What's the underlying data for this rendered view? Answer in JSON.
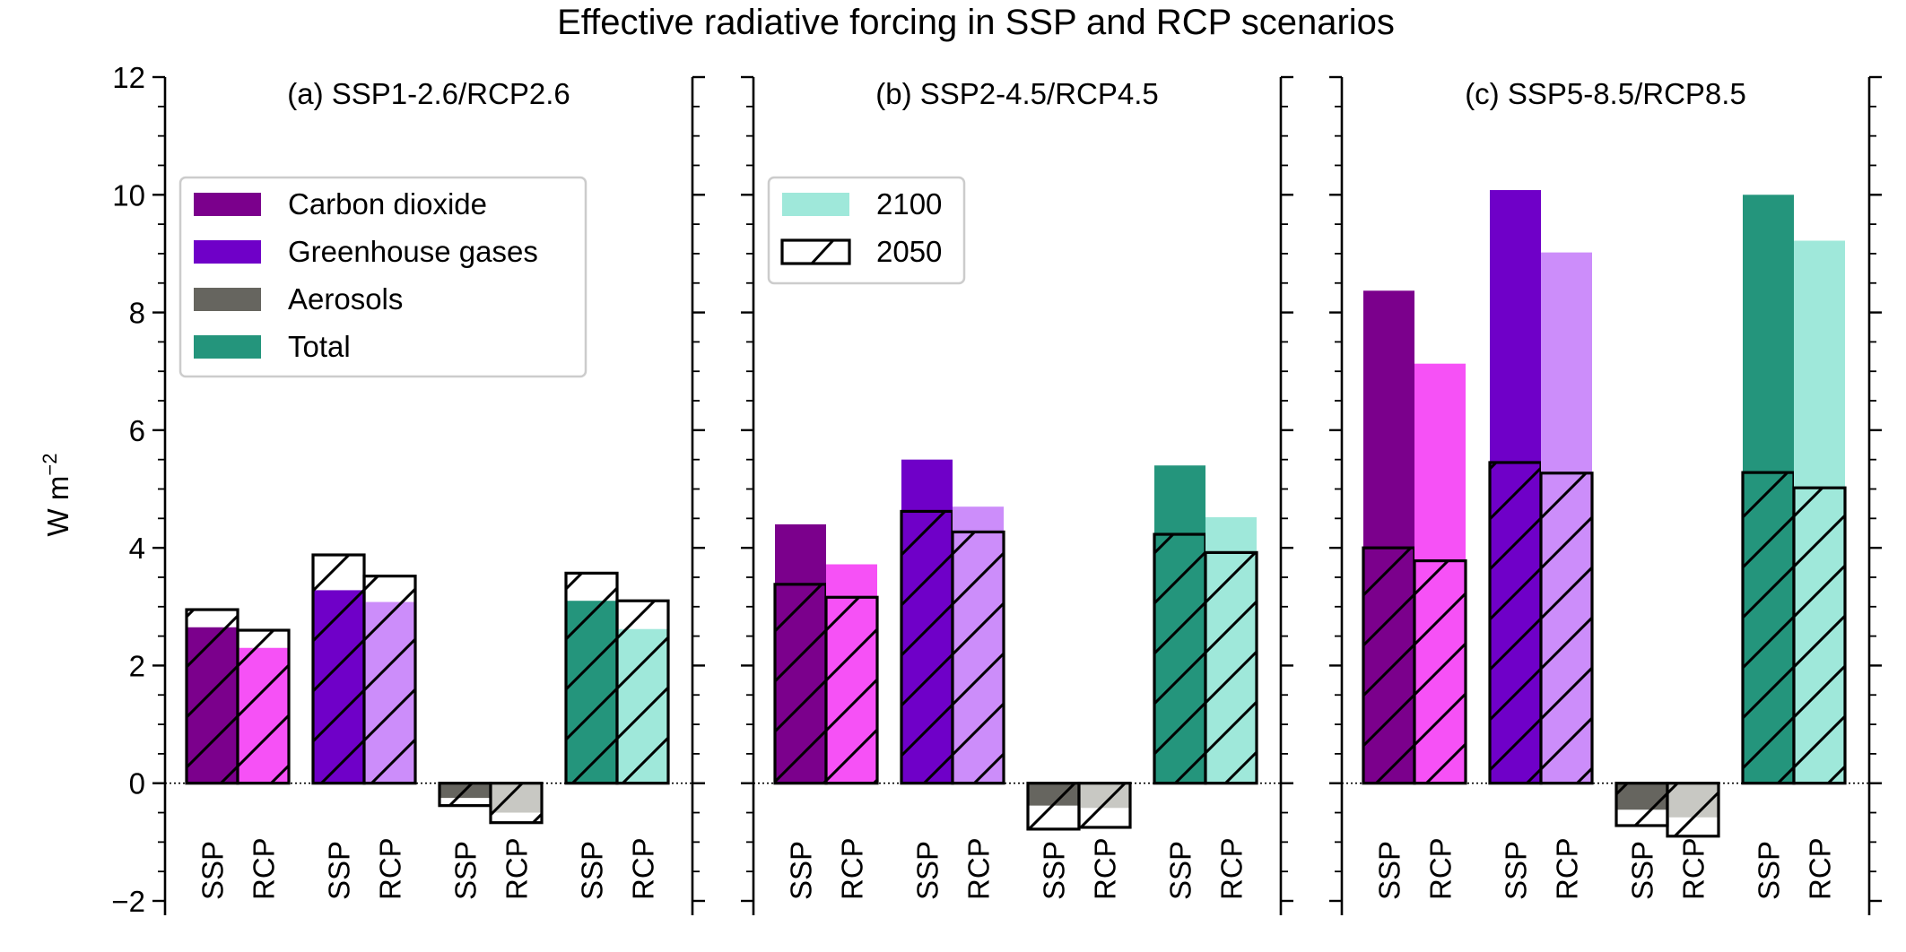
{
  "title": "Effective radiative forcing in SSP and RCP scenarios",
  "ylabel_main": "W m",
  "ylabel_sup": "−2",
  "legend_categories": [
    {
      "label": "Carbon dioxide",
      "color": "#7b008c"
    },
    {
      "label": "Greenhouse gases",
      "color": "#6f00c8"
    },
    {
      "label": "Aerosols",
      "color": "#66655f"
    },
    {
      "label": "Total",
      "color": "#24957c"
    }
  ],
  "legend_years": [
    {
      "label": "2100",
      "color": "#9fe8da"
    },
    {
      "label": "2050",
      "hatch": true
    }
  ],
  "chart_data": {
    "type": "bar",
    "ylim": [
      -2,
      12
    ],
    "yticks": [
      -2,
      0,
      2,
      4,
      6,
      8,
      10,
      12
    ],
    "yticklabels": [
      "−2",
      "0",
      "2",
      "4",
      "6",
      "8",
      "10",
      "12"
    ],
    "series_order": [
      "Carbon dioxide",
      "Greenhouse gases",
      "Aerosols",
      "Total"
    ],
    "scenario_labels": [
      "SSP",
      "RCP"
    ],
    "colors": {
      "SSP": [
        "#7b008c",
        "#6f00c8",
        "#66655f",
        "#24957c"
      ],
      "RCP": [
        "#f651f6",
        "#cc8dfa",
        "#c8c8c3",
        "#9fe8da"
      ]
    },
    "panels": [
      {
        "title": "(a) SSP1-2.6/RCP2.6",
        "values_2100": {
          "SSP": [
            2.65,
            3.28,
            -0.25,
            3.1
          ],
          "RCP": [
            2.3,
            3.08,
            -0.5,
            2.62
          ]
        },
        "values_2050": {
          "SSP": [
            2.95,
            3.88,
            -0.38,
            3.57
          ],
          "RCP": [
            2.6,
            3.52,
            -0.67,
            3.1
          ]
        }
      },
      {
        "title": "(b) SSP2-4.5/RCP4.5",
        "values_2100": {
          "SSP": [
            4.4,
            5.5,
            -0.38,
            5.4
          ],
          "RCP": [
            3.72,
            4.7,
            -0.42,
            4.52
          ]
        },
        "values_2050": {
          "SSP": [
            3.38,
            4.62,
            -0.78,
            4.23
          ],
          "RCP": [
            3.16,
            4.27,
            -0.75,
            3.92
          ]
        }
      },
      {
        "title": "(c) SSP5-8.5/RCP8.5",
        "values_2100": {
          "SSP": [
            8.37,
            10.08,
            -0.45,
            10.0
          ],
          "RCP": [
            7.13,
            9.02,
            -0.58,
            9.22
          ]
        },
        "values_2050": {
          "SSP": [
            4.0,
            5.45,
            -0.72,
            5.28
          ],
          "RCP": [
            3.78,
            5.27,
            -0.9,
            5.02
          ]
        }
      }
    ]
  }
}
